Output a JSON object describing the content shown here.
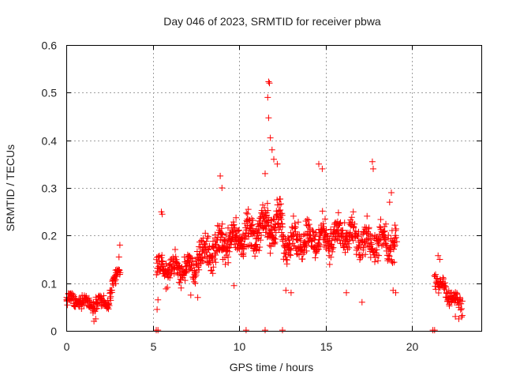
{
  "chart_data": {
    "type": "scatter",
    "title": "Day 046 of 2023, SRMTID for receiver pbwa",
    "xlabel": "GPS time / hours",
    "ylabel": "SRMTID / TECUs",
    "xlim": [
      0,
      24
    ],
    "ylim": [
      0,
      0.6
    ],
    "xticks": [
      0,
      5,
      10,
      15,
      20
    ],
    "yticks": [
      0,
      0.1,
      0.2,
      0.3,
      0.4,
      0.5,
      0.6
    ],
    "grid": true,
    "marker": "+",
    "color": "#ff0000",
    "series": [
      {
        "name": "SRMTID",
        "segments": [
          {
            "x_range": [
              0.0,
              1.2
            ],
            "level_start": 0.065,
            "level_end": 0.06,
            "spread": 0.018,
            "count": 70
          },
          {
            "x_range": [
              1.2,
              2.5
            ],
            "level_start": 0.06,
            "level_end": 0.06,
            "spread": 0.02,
            "count": 70
          },
          {
            "x_range": [
              2.5,
              3.1
            ],
            "level_start": 0.07,
            "level_end": 0.13,
            "spread": 0.025,
            "count": 40
          },
          {
            "x_range": [
              5.2,
              7.5
            ],
            "level_start": 0.13,
            "level_end": 0.13,
            "spread": 0.035,
            "count": 150
          },
          {
            "x_range": [
              7.5,
              9.0
            ],
            "level_start": 0.15,
            "level_end": 0.18,
            "spread": 0.05,
            "count": 110
          },
          {
            "x_range": [
              9.0,
              11.0
            ],
            "level_start": 0.19,
            "level_end": 0.2,
            "spread": 0.05,
            "count": 160
          },
          {
            "x_range": [
              11.0,
              12.5
            ],
            "level_start": 0.22,
            "level_end": 0.22,
            "spread": 0.06,
            "count": 130
          },
          {
            "x_range": [
              12.5,
              16.5
            ],
            "level_start": 0.19,
            "level_end": 0.2,
            "spread": 0.05,
            "count": 280
          },
          {
            "x_range": [
              16.5,
              19.1
            ],
            "level_start": 0.19,
            "level_end": 0.18,
            "spread": 0.05,
            "count": 170
          },
          {
            "x_range": [
              21.3,
              22.9
            ],
            "level_start": 0.11,
            "level_end": 0.05,
            "spread": 0.025,
            "count": 90
          }
        ],
        "points": [
          {
            "x": 11.7,
            "y": 0.523
          },
          {
            "x": 11.75,
            "y": 0.52
          },
          {
            "x": 11.65,
            "y": 0.49
          },
          {
            "x": 11.7,
            "y": 0.447
          },
          {
            "x": 11.8,
            "y": 0.405
          },
          {
            "x": 11.9,
            "y": 0.38
          },
          {
            "x": 12.0,
            "y": 0.36
          },
          {
            "x": 12.2,
            "y": 0.35
          },
          {
            "x": 11.5,
            "y": 0.33
          },
          {
            "x": 17.7,
            "y": 0.355
          },
          {
            "x": 17.75,
            "y": 0.34
          },
          {
            "x": 14.6,
            "y": 0.35
          },
          {
            "x": 14.8,
            "y": 0.34
          },
          {
            "x": 8.9,
            "y": 0.325
          },
          {
            "x": 9.0,
            "y": 0.3
          },
          {
            "x": 18.8,
            "y": 0.29
          },
          {
            "x": 18.7,
            "y": 0.27
          },
          {
            "x": 3.1,
            "y": 0.18
          },
          {
            "x": 3.05,
            "y": 0.155
          },
          {
            "x": 5.5,
            "y": 0.25
          },
          {
            "x": 5.55,
            "y": 0.245
          },
          {
            "x": 21.5,
            "y": 0.158
          },
          {
            "x": 21.6,
            "y": 0.15
          },
          {
            "x": 22.7,
            "y": 0.025
          },
          {
            "x": 22.5,
            "y": 0.03
          },
          {
            "x": 1.6,
            "y": 0.02
          },
          {
            "x": 1.7,
            "y": 0.025
          },
          {
            "x": 5.25,
            "y": 0.045
          },
          {
            "x": 5.3,
            "y": 0.065
          },
          {
            "x": 9.7,
            "y": 0.095
          },
          {
            "x": 12.7,
            "y": 0.085
          },
          {
            "x": 13.0,
            "y": 0.08
          },
          {
            "x": 16.2,
            "y": 0.08
          },
          {
            "x": 17.1,
            "y": 0.06
          },
          {
            "x": 18.9,
            "y": 0.085
          },
          {
            "x": 19.05,
            "y": 0.08
          },
          {
            "x": 7.6,
            "y": 0.07
          },
          {
            "x": 7.2,
            "y": 0.075
          }
        ],
        "zero_points": [
          5.2,
          5.3,
          10.4,
          11.5,
          12.5,
          21.2,
          21.3
        ]
      }
    ]
  }
}
